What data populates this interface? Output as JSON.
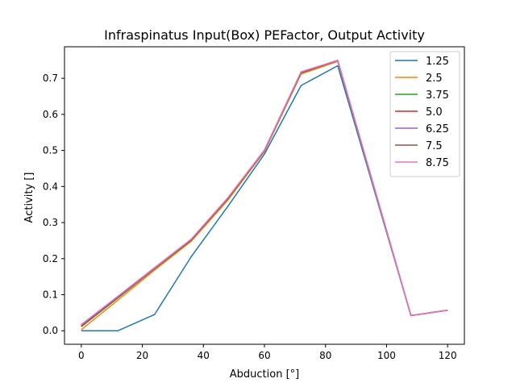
{
  "chart_data": {
    "type": "line",
    "title": "Infraspinatus Input(Box) PEFactor, Output Activity",
    "xlabel": "Abduction [°]",
    "ylabel": "Activity []",
    "xlim": [
      -5.5,
      125.5
    ],
    "ylim": [
      -0.0375,
      0.7875
    ],
    "xticks": [
      0,
      20,
      40,
      60,
      80,
      100,
      120
    ],
    "yticks": [
      0.0,
      0.1,
      0.2,
      0.3,
      0.4,
      0.5,
      0.6,
      0.7
    ],
    "xtick_labels": [
      "0",
      "20",
      "40",
      "60",
      "80",
      "100",
      "120"
    ],
    "ytick_labels": [
      "0.0",
      "0.1",
      "0.2",
      "0.3",
      "0.4",
      "0.5",
      "0.6",
      "0.7"
    ],
    "grid": false,
    "legend_position": "top-right",
    "x": [
      0,
      12,
      24,
      36,
      48,
      60,
      72,
      84,
      108,
      120
    ],
    "series": [
      {
        "name": "1.25",
        "color": "#1f77b4",
        "values": [
          0.0,
          0.0,
          0.045,
          0.205,
          0.345,
          0.49,
          0.68,
          0.735,
          0.042,
          0.057
        ]
      },
      {
        "name": "2.5",
        "color": "#ff7f0e",
        "values": [
          0.003,
          0.085,
          0.168,
          0.248,
          0.362,
          0.497,
          0.712,
          0.747,
          0.042,
          0.057
        ]
      },
      {
        "name": "3.75",
        "color": "#2ca02c",
        "values": [
          0.011,
          0.091,
          0.172,
          0.251,
          0.366,
          0.499,
          0.715,
          0.749,
          0.042,
          0.057
        ]
      },
      {
        "name": "5.0",
        "color": "#d62728",
        "values": [
          0.013,
          0.093,
          0.173,
          0.252,
          0.367,
          0.5,
          0.716,
          0.749,
          0.042,
          0.057
        ]
      },
      {
        "name": "6.25",
        "color": "#9467bd",
        "values": [
          0.015,
          0.094,
          0.174,
          0.253,
          0.368,
          0.5,
          0.717,
          0.75,
          0.042,
          0.057
        ]
      },
      {
        "name": "7.5",
        "color": "#8c564b",
        "values": [
          0.016,
          0.095,
          0.175,
          0.253,
          0.368,
          0.501,
          0.717,
          0.75,
          0.042,
          0.057
        ]
      },
      {
        "name": "8.75",
        "color": "#e377c2",
        "values": [
          0.017,
          0.096,
          0.175,
          0.254,
          0.369,
          0.501,
          0.718,
          0.75,
          0.042,
          0.057
        ]
      }
    ]
  }
}
